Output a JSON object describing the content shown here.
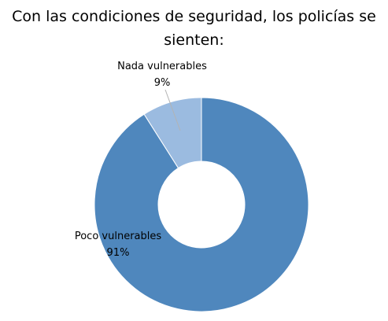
{
  "chart_data": {
    "type": "pie",
    "variant": "doughnut",
    "title": "Con las condiciones de seguridad, los policías se sienten:",
    "slices": [
      {
        "name": "Poco vulnerables",
        "value": 91,
        "label": "91%",
        "color": "#4f87bd"
      },
      {
        "name": "Nada vulnerables",
        "value": 9,
        "label": "9%",
        "color": "#9bbbe0"
      }
    ],
    "legend": "none"
  }
}
